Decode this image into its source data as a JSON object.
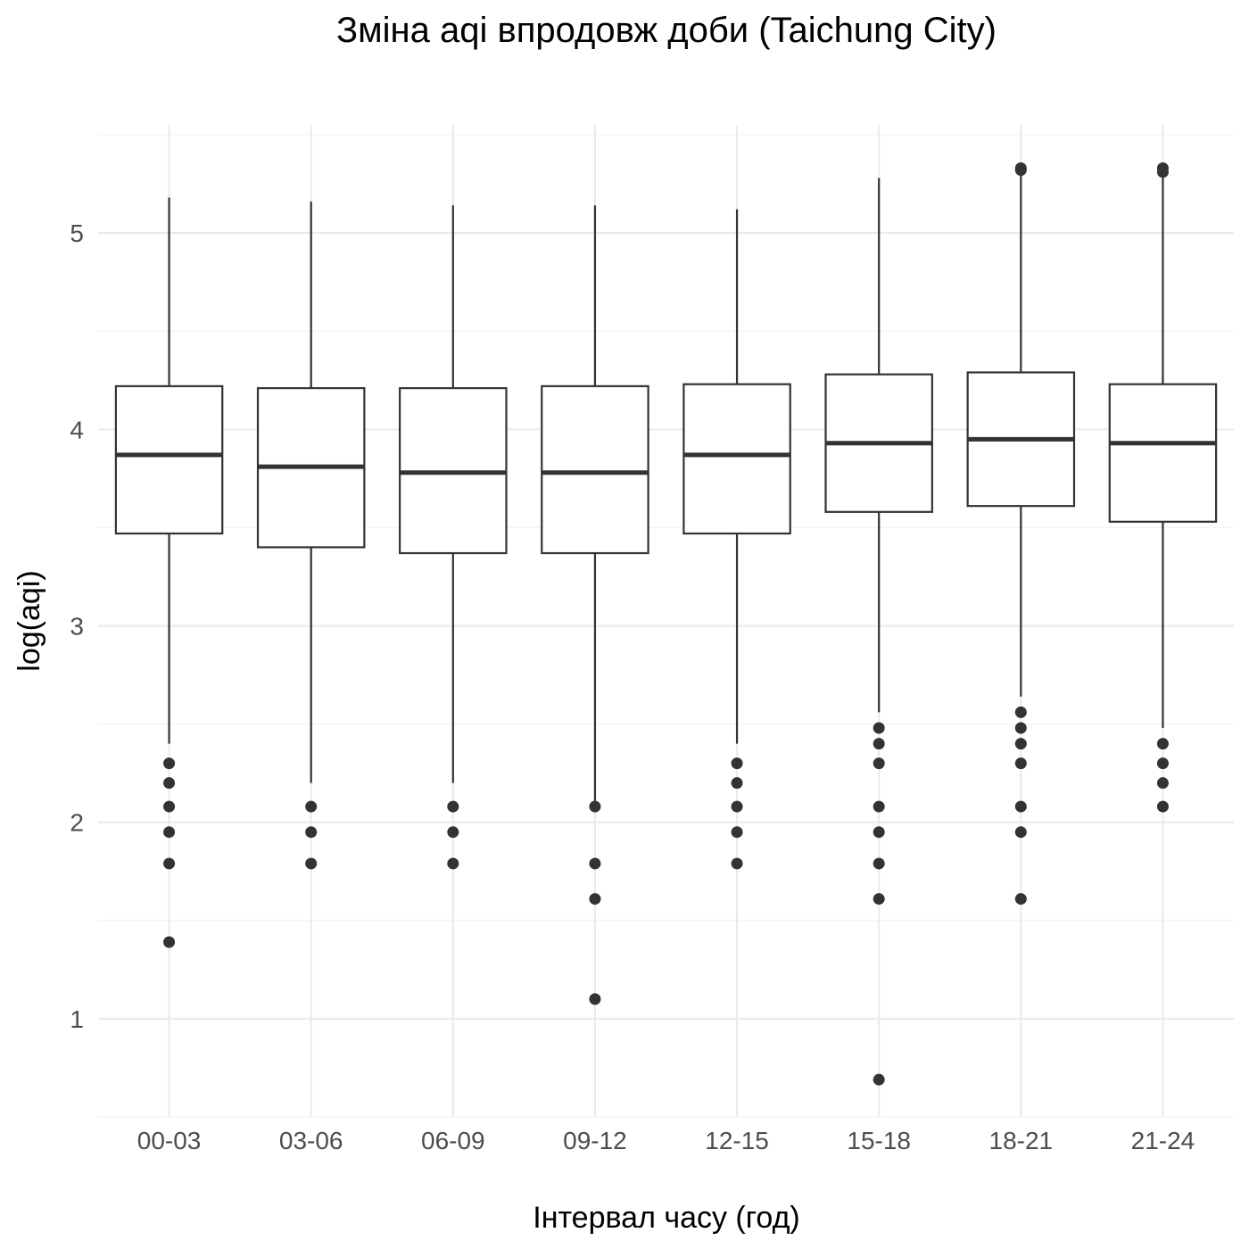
{
  "chart_data": {
    "type": "boxplot",
    "title": "Зміна aqi впродовж доби (Taichung City)",
    "xlabel": "Інтервал часу (год)",
    "ylabel": "log(aqi)",
    "ylim": [
      0.5,
      5.55
    ],
    "yticks": [
      1,
      2,
      3,
      4,
      5
    ],
    "grid": true,
    "legend": "none",
    "categories": [
      "00-03",
      "03-06",
      "06-09",
      "09-12",
      "12-15",
      "15-18",
      "18-21",
      "21-24"
    ],
    "boxes": [
      {
        "category": "00-03",
        "whisker_low": 2.4,
        "q1": 3.47,
        "median": 3.87,
        "q3": 4.22,
        "whisker_high": 5.18,
        "outliers": [
          2.3,
          2.2,
          2.08,
          1.95,
          1.79,
          1.39
        ]
      },
      {
        "category": "03-06",
        "whisker_low": 2.2,
        "q1": 3.4,
        "median": 3.81,
        "q3": 4.21,
        "whisker_high": 5.16,
        "outliers": [
          2.08,
          1.95,
          1.79
        ]
      },
      {
        "category": "06-09",
        "whisker_low": 2.2,
        "q1": 3.37,
        "median": 3.78,
        "q3": 4.21,
        "whisker_high": 5.14,
        "outliers": [
          2.08,
          1.95,
          1.79
        ]
      },
      {
        "category": "09-12",
        "whisker_low": 2.08,
        "q1": 3.37,
        "median": 3.78,
        "q3": 4.22,
        "whisker_high": 5.14,
        "outliers": [
          2.08,
          1.79,
          1.61,
          1.1
        ]
      },
      {
        "category": "12-15",
        "whisker_low": 2.4,
        "q1": 3.47,
        "median": 3.87,
        "q3": 4.23,
        "whisker_high": 5.12,
        "outliers": [
          2.3,
          2.2,
          2.08,
          1.95,
          1.79
        ]
      },
      {
        "category": "15-18",
        "whisker_low": 2.56,
        "q1": 3.58,
        "median": 3.93,
        "q3": 4.28,
        "whisker_high": 5.28,
        "outliers": [
          2.48,
          2.4,
          2.3,
          2.08,
          1.95,
          1.79,
          1.61,
          0.69
        ]
      },
      {
        "category": "18-21",
        "whisker_low": 2.64,
        "q1": 3.61,
        "median": 3.95,
        "q3": 4.29,
        "whisker_high": 5.3,
        "outliers": [
          5.33,
          5.32,
          2.56,
          2.48,
          2.4,
          2.3,
          2.08,
          1.95,
          1.61
        ]
      },
      {
        "category": "21-24",
        "whisker_low": 2.48,
        "q1": 3.53,
        "median": 3.93,
        "q3": 4.23,
        "whisker_high": 5.28,
        "outliers": [
          5.33,
          5.31,
          2.4,
          2.3,
          2.2,
          2.08
        ]
      }
    ]
  }
}
